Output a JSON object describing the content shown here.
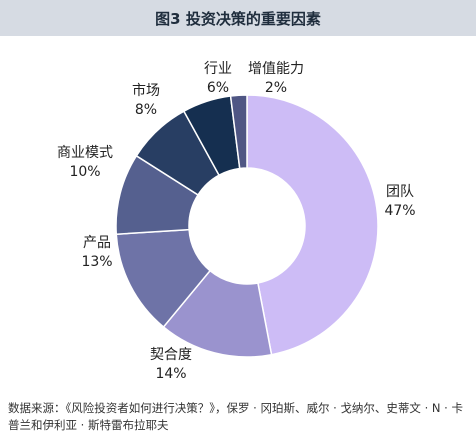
{
  "title": "图3  投资决策的重要因素",
  "source": "数据来源：《风险投资者如何进行决策？》，保罗 · 冈珀斯、威尔 · 戈纳尔、史蒂文 · N · 卡普兰和伊利亚 · 斯特雷布拉耶夫",
  "colors": [
    "#cdbcf6",
    "#9a93ce",
    "#6e73a7",
    "#55608f",
    "#283e63",
    "#152f50",
    "#4f5684",
    "#8a80b8"
  ],
  "chart_data": {
    "type": "pie",
    "donut": true,
    "slices": [
      {
        "name": "团队",
        "value": 47,
        "label": "47%"
      },
      {
        "name": "契合度",
        "value": 14,
        "label": "14%"
      },
      {
        "name": "产品",
        "value": 13,
        "label": "13%"
      },
      {
        "name": "商业模式",
        "value": 10,
        "label": "10%"
      },
      {
        "name": "市场",
        "value": 8,
        "label": "8%"
      },
      {
        "name": "行业",
        "value": 6,
        "label": "6%"
      },
      {
        "name": "增值能力",
        "value": 2,
        "label": "2%"
      }
    ]
  }
}
